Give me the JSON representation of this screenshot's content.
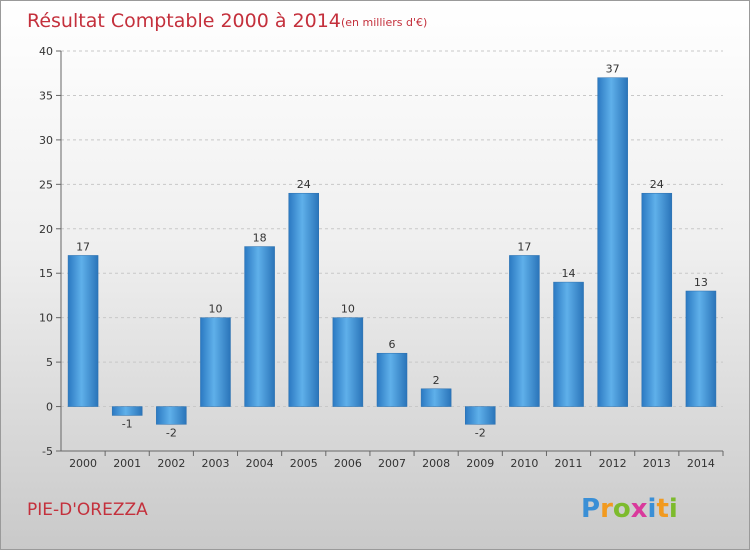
{
  "chart_data": {
    "type": "bar",
    "title": "Résultat Comptable 2000 à 2014",
    "subtitle": "(en milliers d'€)",
    "categories": [
      "2000",
      "2001",
      "2002",
      "2003",
      "2004",
      "2005",
      "2006",
      "2007",
      "2008",
      "2009",
      "2010",
      "2011",
      "2012",
      "2013",
      "2014"
    ],
    "values": [
      17,
      -1,
      -2,
      10,
      18,
      24,
      10,
      6,
      2,
      -2,
      17,
      14,
      37,
      24,
      13
    ],
    "ylim": [
      -5,
      40
    ],
    "yticks": [
      -5,
      0,
      5,
      10,
      15,
      20,
      25,
      30,
      35,
      40
    ],
    "grid": true,
    "bar_color": "#3a8fd6"
  },
  "commune": "PIE-D'OREZZA",
  "logo": {
    "letters": [
      "P",
      "r",
      "o",
      "x",
      "i",
      "t",
      "i"
    ],
    "colors": [
      "#3a8fd6",
      "#f29a1f",
      "#7dbb2d",
      "#d93a9c",
      "#3a8fd6",
      "#f29a1f",
      "#7dbb2d"
    ]
  }
}
